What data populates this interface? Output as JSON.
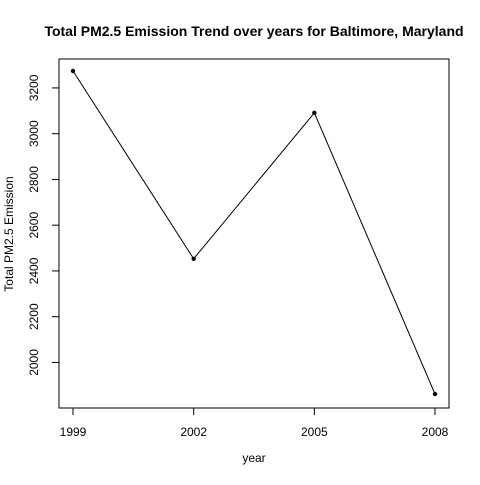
{
  "chart_data": {
    "type": "line",
    "title": "Total PM2.5 Emission Trend over years for Baltimore, Maryland",
    "xlabel": "year",
    "ylabel": "Total PM2.5 Emission",
    "x": [
      1999,
      2002,
      2005,
      2008
    ],
    "xticks": [
      "1999",
      "2002",
      "2005",
      "2008"
    ],
    "yticks": [
      2000,
      2200,
      2400,
      2600,
      2800,
      3000,
      3200
    ],
    "xlim": [
      1999,
      2008
    ],
    "ylim": [
      1862.0,
      3274.0
    ],
    "grid": false,
    "series": [
      {
        "values": [
          3274,
          2453,
          3091,
          1862
        ],
        "color": "#000000"
      }
    ]
  }
}
